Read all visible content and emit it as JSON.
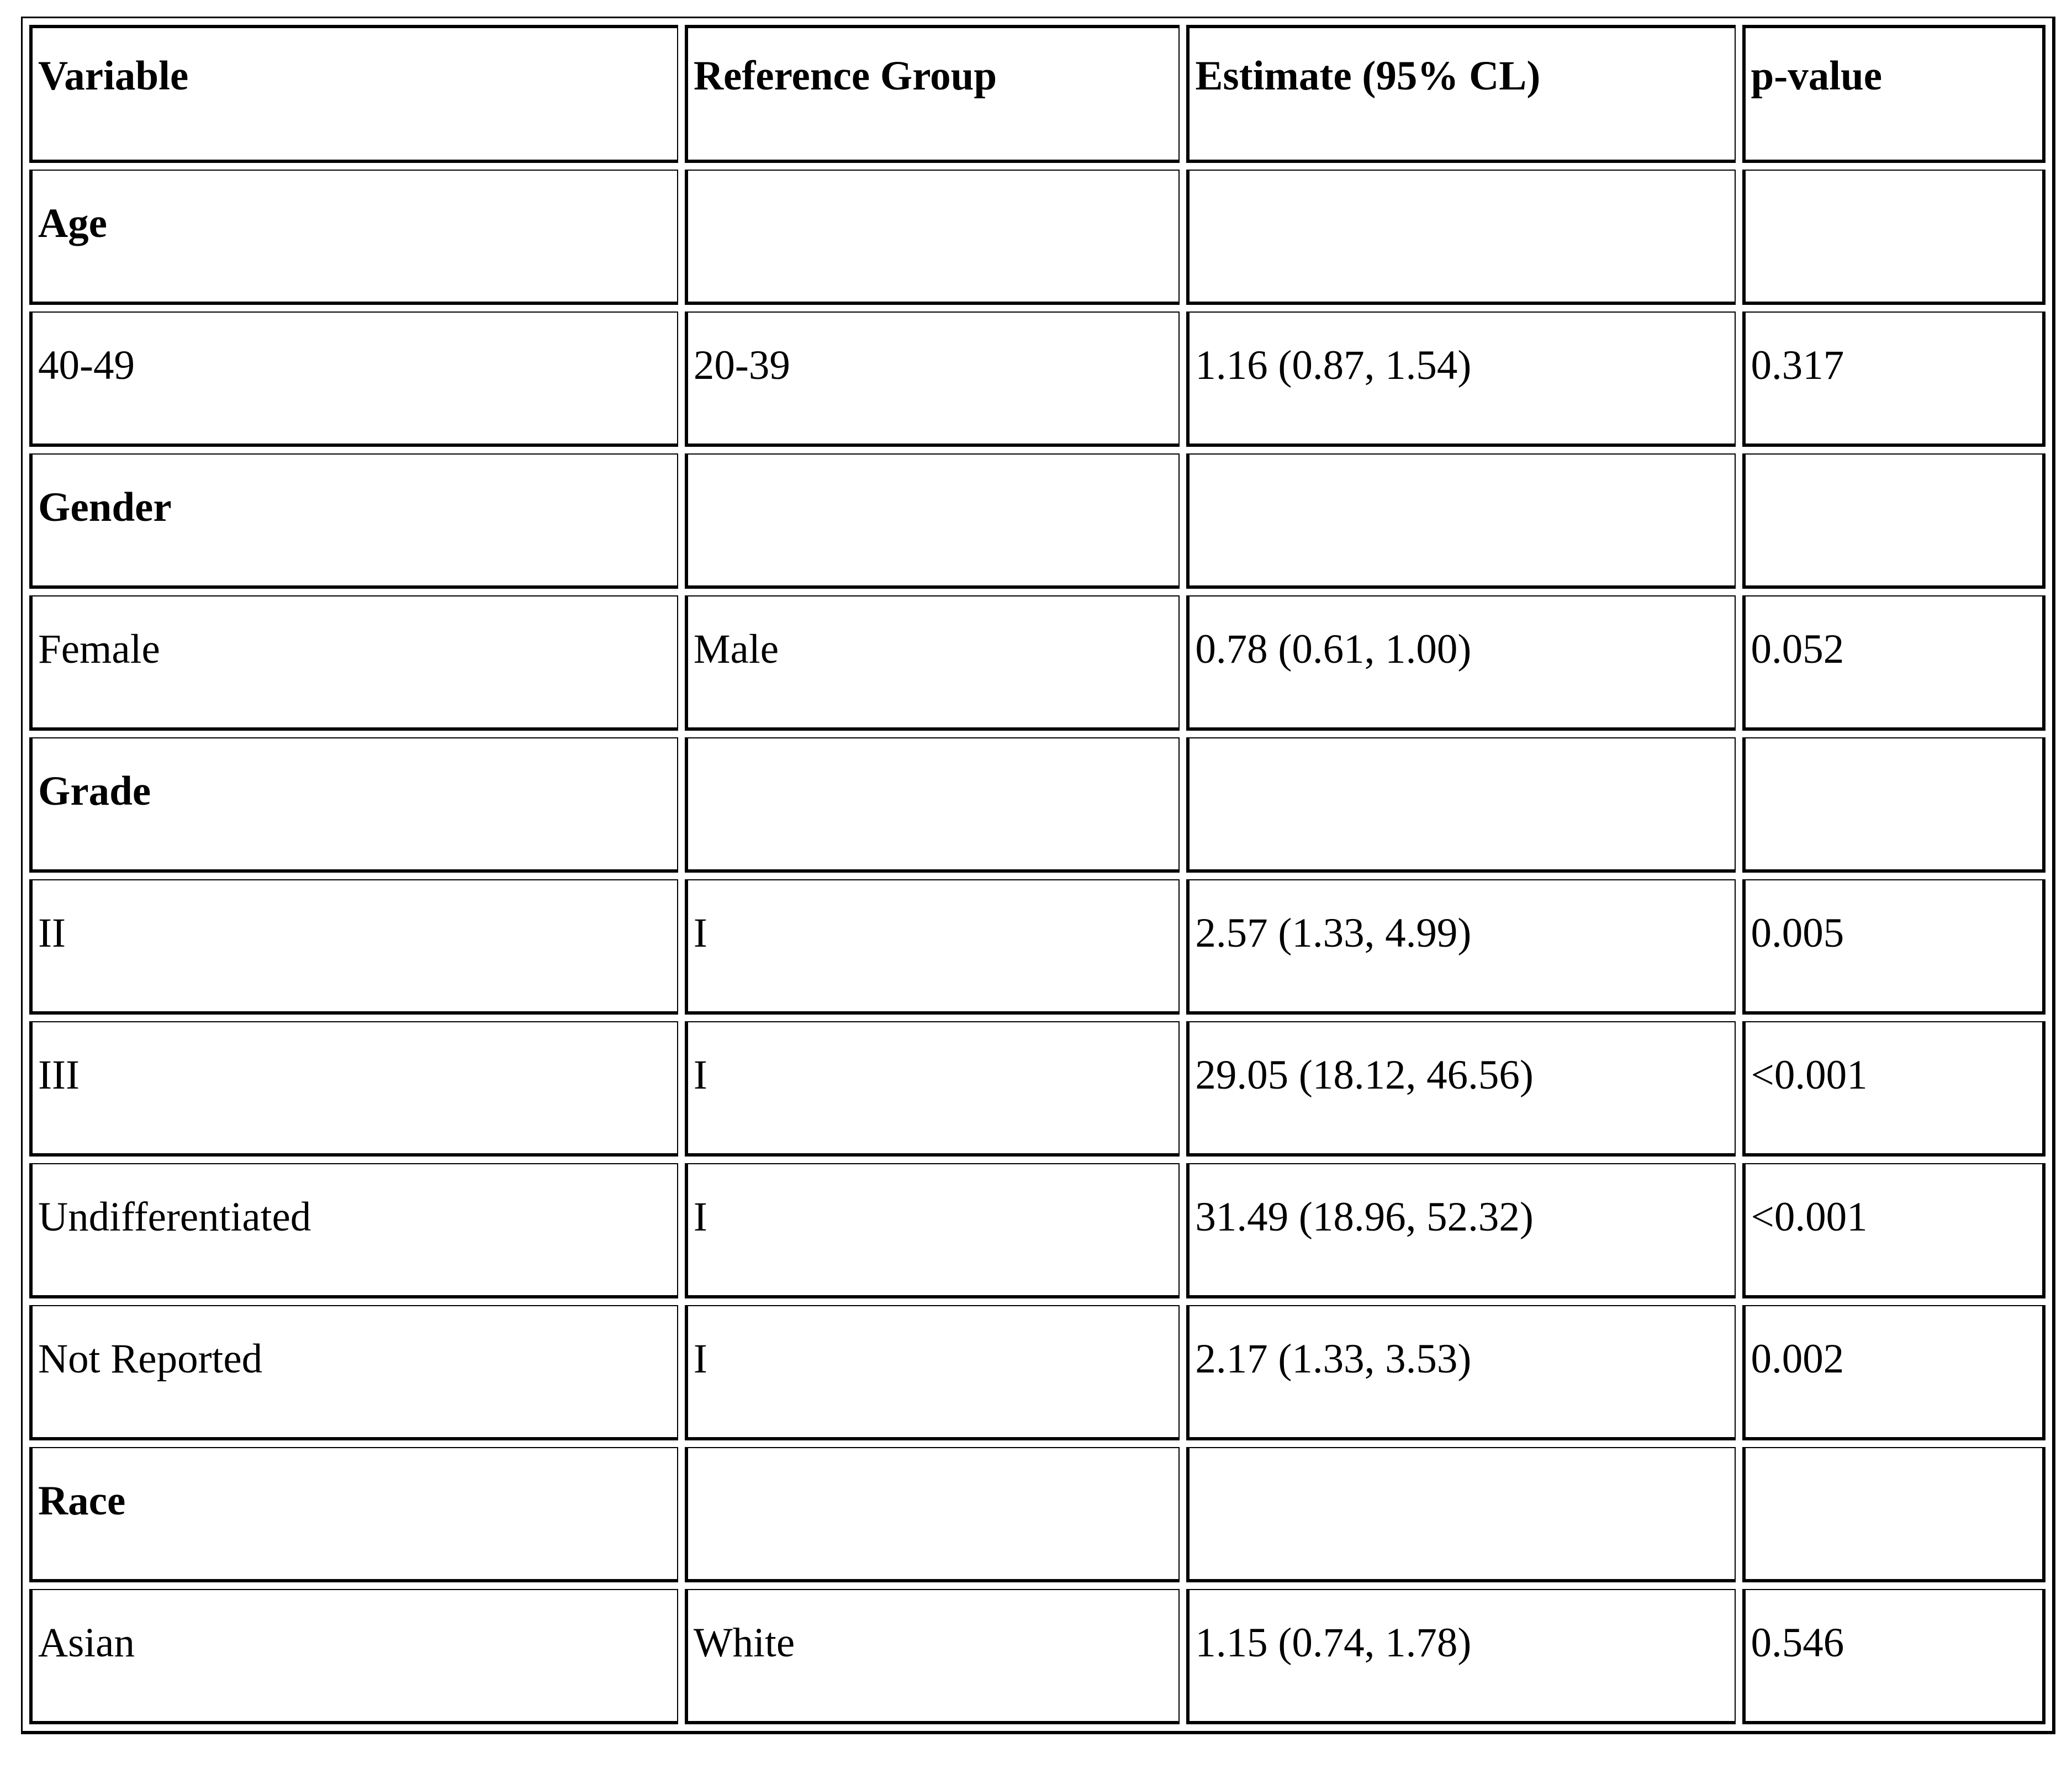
{
  "colors": {
    "border": "#000000",
    "background": "#ffffff",
    "text": "#000000"
  },
  "table": {
    "columns": [
      "Variable",
      "Reference Group",
      "Estimate (95% CL)",
      "p-value"
    ],
    "rows": [
      {
        "group": true,
        "cells": [
          "Age",
          "",
          "",
          ""
        ]
      },
      {
        "group": false,
        "cells": [
          "40-49",
          "20-39",
          "1.16 (0.87, 1.54)",
          "0.317"
        ]
      },
      {
        "group": true,
        "cells": [
          "Gender",
          "",
          "",
          ""
        ]
      },
      {
        "group": false,
        "cells": [
          "Female",
          "Male",
          "0.78 (0.61, 1.00)",
          "0.052"
        ]
      },
      {
        "group": true,
        "cells": [
          "Grade",
          "",
          "",
          ""
        ]
      },
      {
        "group": false,
        "cells": [
          "II",
          "I",
          "2.57 (1.33, 4.99)",
          "0.005"
        ]
      },
      {
        "group": false,
        "cells": [
          "III",
          "I",
          "29.05 (18.12, 46.56)",
          "<0.001"
        ]
      },
      {
        "group": false,
        "cells": [
          "Undifferentiated",
          "I",
          "31.49 (18.96, 52.32)",
          "<0.001"
        ]
      },
      {
        "group": false,
        "cells": [
          "Not Reported",
          "I",
          "2.17 (1.33, 3.53)",
          "0.002"
        ]
      },
      {
        "group": true,
        "cells": [
          "Race",
          "",
          "",
          ""
        ]
      },
      {
        "group": false,
        "cells": [
          "Asian",
          "White",
          "1.15 (0.74, 1.78)",
          "0.546"
        ]
      }
    ]
  }
}
